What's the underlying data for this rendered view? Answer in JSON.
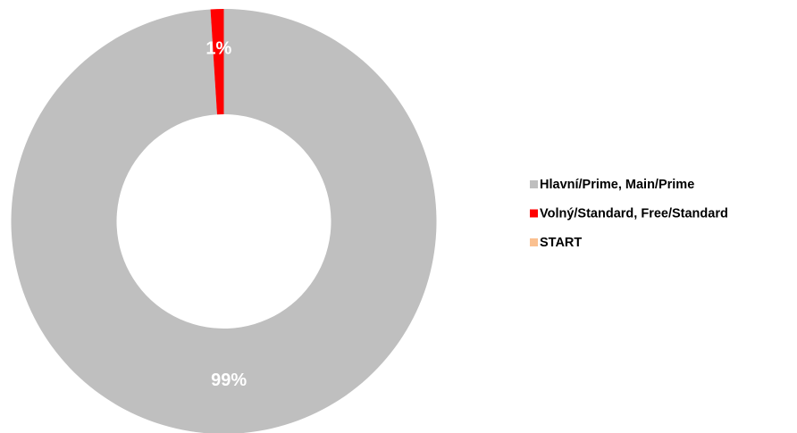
{
  "chart_data": {
    "type": "donut",
    "categories": [
      "Hlavní/Prime, Main/Prime",
      "Volný/Standard, Free/Standard",
      "START"
    ],
    "values": [
      99,
      1,
      0
    ],
    "value_labels": [
      "99%",
      "1%",
      null
    ],
    "colors": [
      "#bfbfbf",
      "#ff0000",
      "#fac090"
    ],
    "legend": "right"
  }
}
